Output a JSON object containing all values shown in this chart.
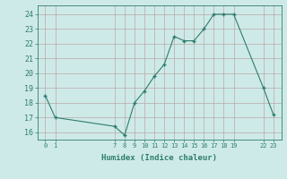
{
  "x": [
    0,
    1,
    7,
    8,
    9,
    10,
    11,
    12,
    13,
    14,
    15,
    16,
    17,
    18,
    19,
    22,
    23
  ],
  "y": [
    18.5,
    17.0,
    16.4,
    15.8,
    18.0,
    18.8,
    19.8,
    20.6,
    22.5,
    22.2,
    22.2,
    23.0,
    24.0,
    24.0,
    24.0,
    19.0,
    17.2
  ],
  "xticks": [
    0,
    1,
    7,
    8,
    9,
    10,
    11,
    12,
    13,
    14,
    15,
    16,
    17,
    18,
    19,
    22,
    23
  ],
  "xtick_labels": [
    "0",
    "1",
    "7",
    "8",
    "9",
    "10",
    "11",
    "12",
    "13",
    "14",
    "15",
    "16",
    "17",
    "18",
    "19",
    "22",
    "23"
  ],
  "yticks": [
    16,
    17,
    18,
    19,
    20,
    21,
    22,
    23,
    24
  ],
  "ylim": [
    15.5,
    24.6
  ],
  "xlim": [
    -0.8,
    23.8
  ],
  "xlabel": "Humidex (Indice chaleur)",
  "line_color": "#2e7d6e",
  "marker_color": "#2e7d6e",
  "bg_color": "#ceeae8",
  "grid_color": "#b8a8a8",
  "xlabel_fontsize": 6.5,
  "xtick_fontsize": 5.0,
  "ytick_fontsize": 6.0
}
